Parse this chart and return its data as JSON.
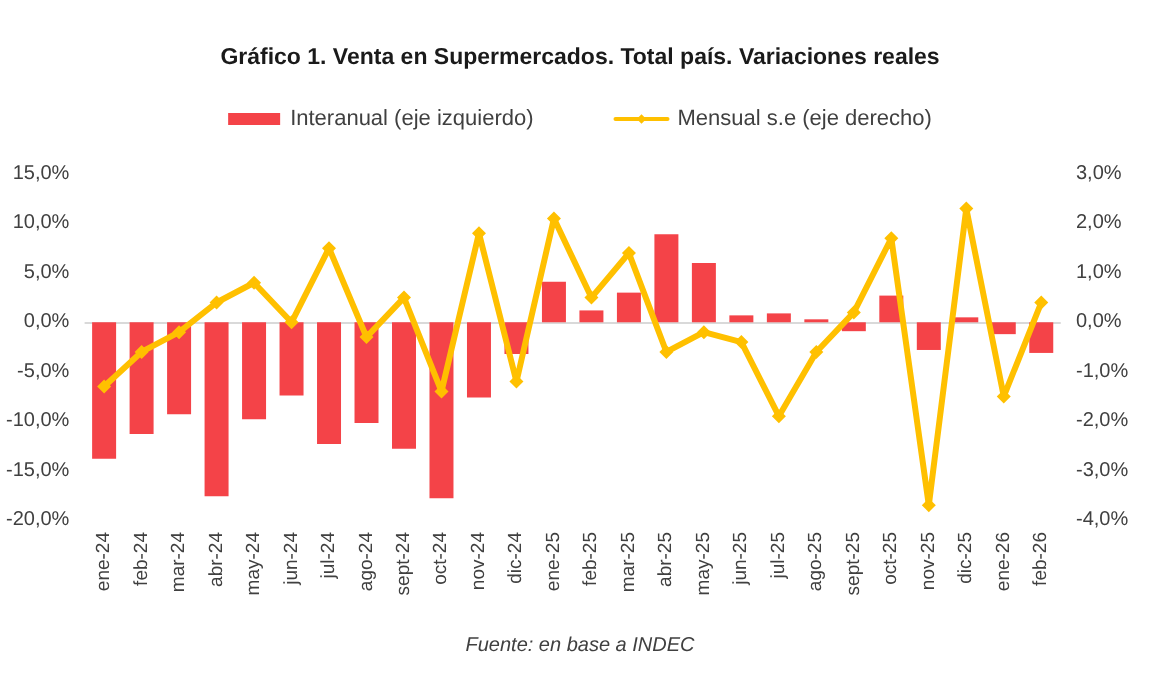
{
  "chart_data": {
    "type": "bar",
    "title": "Gráfico 1. Venta en Supermercados. Total país. Variaciones reales",
    "categories": [
      "ene-24",
      "feb-24",
      "mar-24",
      "abr-24",
      "may-24",
      "jun-24",
      "jul-24",
      "ago-24",
      "sept-24",
      "oct-24",
      "nov-24",
      "dic-24",
      "ene-25",
      "feb-25",
      "mar-25",
      "abr-25",
      "may-25",
      "jun-25",
      "jul-25",
      "ago-25",
      "sept-25",
      "oct-25",
      "nov-25",
      "dic-25",
      "ene-26",
      "feb-26"
    ],
    "series": [
      {
        "name": "Interanual (eje izquierdo)",
        "color": "#f44348",
        "values": [
          -13.8,
          -11.3,
          -9.3,
          -17.6,
          -9.8,
          -7.4,
          -12.3,
          -10.2,
          -12.8,
          -17.8,
          -7.6,
          -3.2,
          4.1,
          1.2,
          3.0,
          8.9,
          6.0,
          0.7,
          0.9,
          0.3,
          -0.9,
          2.7,
          -2.8,
          0.5,
          -1.2,
          -3.1
        ]
      },
      {
        "name": "Mensual s.e (eje derecho)",
        "type": "line",
        "axis": "y2",
        "color": "#ffc000",
        "values": [
          -1.3,
          -0.6,
          -0.2,
          0.4,
          0.8,
          0.0,
          1.5,
          -0.3,
          0.5,
          -1.4,
          1.8,
          -1.2,
          2.1,
          0.5,
          1.4,
          -0.6,
          -0.2,
          -0.4,
          -1.9,
          -0.6,
          0.2,
          1.7,
          -3.7,
          2.3,
          -1.5,
          0.4
        ]
      }
    ],
    "ylim": [
      -20,
      15
    ],
    "yticks": [
      {
        "value": -20,
        "label": "-20,0%"
      },
      {
        "value": -15,
        "label": "-15,0%"
      },
      {
        "value": -10,
        "label": "-10,0%"
      },
      {
        "value": -5,
        "label": "-5,0%"
      },
      {
        "value": 0,
        "label": "0,0%"
      },
      {
        "value": 5,
        "label": "5,0%"
      },
      {
        "value": 10,
        "label": "10,0%"
      },
      {
        "value": 15,
        "label": "15,0%"
      }
    ],
    "y2lim": [
      -4,
      3
    ],
    "y2ticks": [
      {
        "value": -4,
        "label": "-4,0%"
      },
      {
        "value": -3,
        "label": "-3,0%"
      },
      {
        "value": -2,
        "label": "-2,0%"
      },
      {
        "value": -1,
        "label": "-1,0%"
      },
      {
        "value": 0,
        "label": "0,0%"
      },
      {
        "value": 1,
        "label": "1,0%"
      },
      {
        "value": 2,
        "label": "2,0%"
      },
      {
        "value": 3,
        "label": "3,0%"
      }
    ],
    "legend": "top",
    "marker": "diamond",
    "line_style": "solid",
    "annotations": [
      "Fuente: en base a INDEC"
    ]
  }
}
